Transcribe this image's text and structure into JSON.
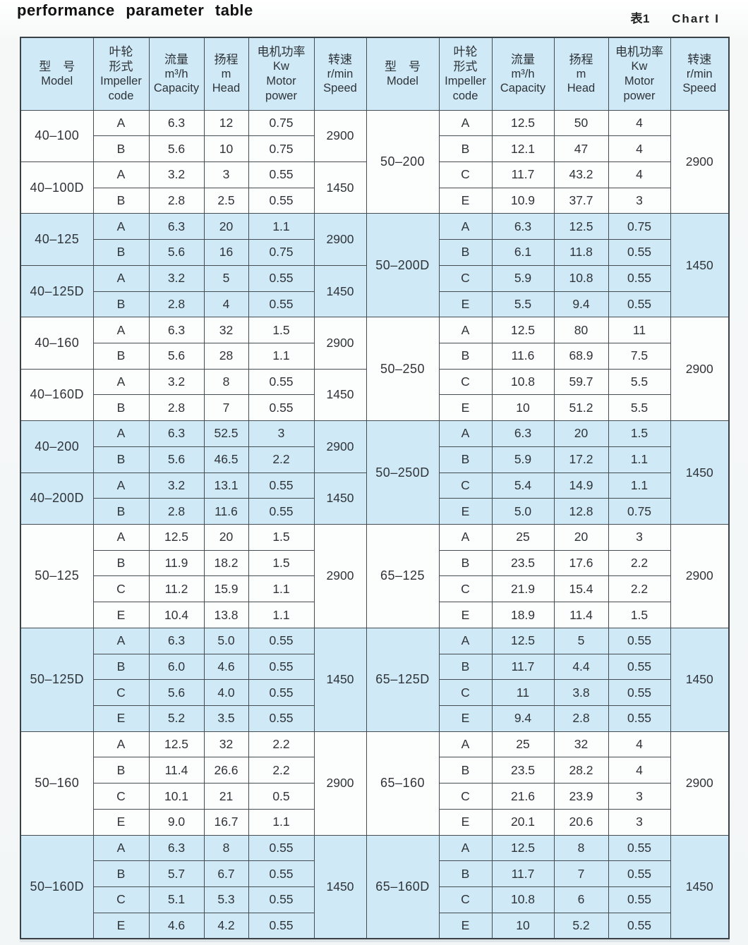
{
  "title": "performance parameter table",
  "caption": {
    "zh": "表1",
    "en": "Chart I"
  },
  "colors": {
    "band": "#cfe9f6",
    "header_bg": "#cfe9f6",
    "row_bg": "#fcfdfd",
    "border": "#454c52",
    "text": "#2f3439"
  },
  "table": {
    "columns": [
      {
        "id": "model",
        "lines": [
          "型　号",
          "Model"
        ]
      },
      {
        "id": "impeller",
        "lines": [
          "叶轮",
          "形式",
          "Impeller",
          "code"
        ]
      },
      {
        "id": "capacity",
        "lines": [
          "流量",
          "m³/h",
          "Capacity"
        ]
      },
      {
        "id": "head",
        "lines": [
          "扬程",
          "m",
          "Head"
        ]
      },
      {
        "id": "power",
        "lines": [
          "电机功率",
          "Kw",
          "Motor",
          "power"
        ]
      },
      {
        "id": "speed",
        "lines": [
          "转速",
          "r/min",
          "Speed"
        ]
      }
    ],
    "left_groups": [
      {
        "model": "40–100",
        "speed": "2900",
        "shaded": false,
        "rows": [
          [
            "A",
            "6.3",
            "12",
            "0.75"
          ],
          [
            "B",
            "5.6",
            "10",
            "0.75"
          ]
        ]
      },
      {
        "model": "40–100D",
        "speed": "1450",
        "shaded": false,
        "rows": [
          [
            "A",
            "3.2",
            "3",
            "0.55"
          ],
          [
            "B",
            "2.8",
            "2.5",
            "0.55"
          ]
        ]
      },
      {
        "model": "40–125",
        "speed": "2900",
        "shaded": true,
        "rows": [
          [
            "A",
            "6.3",
            "20",
            "1.1"
          ],
          [
            "B",
            "5.6",
            "16",
            "0.75"
          ]
        ]
      },
      {
        "model": "40–125D",
        "speed": "1450",
        "shaded": true,
        "rows": [
          [
            "A",
            "3.2",
            "5",
            "0.55"
          ],
          [
            "B",
            "2.8",
            "4",
            "0.55"
          ]
        ]
      },
      {
        "model": "40–160",
        "speed": "2900",
        "shaded": false,
        "rows": [
          [
            "A",
            "6.3",
            "32",
            "1.5"
          ],
          [
            "B",
            "5.6",
            "28",
            "1.1"
          ]
        ]
      },
      {
        "model": "40–160D",
        "speed": "1450",
        "shaded": false,
        "rows": [
          [
            "A",
            "3.2",
            "8",
            "0.55"
          ],
          [
            "B",
            "2.8",
            "7",
            "0.55"
          ]
        ]
      },
      {
        "model": "40–200",
        "speed": "2900",
        "shaded": true,
        "rows": [
          [
            "A",
            "6.3",
            "52.5",
            "3"
          ],
          [
            "B",
            "5.6",
            "46.5",
            "2.2"
          ]
        ]
      },
      {
        "model": "40–200D",
        "speed": "1450",
        "shaded": true,
        "rows": [
          [
            "A",
            "3.2",
            "13.1",
            "0.55"
          ],
          [
            "B",
            "2.8",
            "11.6",
            "0.55"
          ]
        ]
      },
      {
        "model": "50–125",
        "speed": "2900",
        "shaded": false,
        "rows": [
          [
            "A",
            "12.5",
            "20",
            "1.5"
          ],
          [
            "B",
            "11.9",
            "18.2",
            "1.5"
          ],
          [
            "C",
            "11.2",
            "15.9",
            "1.1"
          ],
          [
            "E",
            "10.4",
            "13.8",
            "1.1"
          ]
        ]
      },
      {
        "model": "50–125D",
        "speed": "1450",
        "shaded": true,
        "rows": [
          [
            "A",
            "6.3",
            "5.0",
            "0.55"
          ],
          [
            "B",
            "6.0",
            "4.6",
            "0.55"
          ],
          [
            "C",
            "5.6",
            "4.0",
            "0.55"
          ],
          [
            "E",
            "5.2",
            "3.5",
            "0.55"
          ]
        ]
      },
      {
        "model": "50–160",
        "speed": "2900",
        "shaded": false,
        "rows": [
          [
            "A",
            "12.5",
            "32",
            "2.2"
          ],
          [
            "B",
            "11.4",
            "26.6",
            "2.2"
          ],
          [
            "C",
            "10.1",
            "21",
            "0.5"
          ],
          [
            "E",
            "9.0",
            "16.7",
            "1.1"
          ]
        ]
      },
      {
        "model": "50–160D",
        "speed": "1450",
        "shaded": true,
        "rows": [
          [
            "A",
            "6.3",
            "8",
            "0.55"
          ],
          [
            "B",
            "5.7",
            "6.7",
            "0.55"
          ],
          [
            "C",
            "5.1",
            "5.3",
            "0.55"
          ],
          [
            "E",
            "4.6",
            "4.2",
            "0.55"
          ]
        ]
      }
    ],
    "right_groups": [
      {
        "model": "50–200",
        "speed": "2900",
        "shaded": false,
        "rows": [
          [
            "A",
            "12.5",
            "50",
            "4"
          ],
          [
            "B",
            "12.1",
            "47",
            "4"
          ],
          [
            "C",
            "11.7",
            "43.2",
            "4"
          ],
          [
            "E",
            "10.9",
            "37.7",
            "3"
          ]
        ]
      },
      {
        "model": "50–200D",
        "speed": "1450",
        "shaded": true,
        "rows": [
          [
            "A",
            "6.3",
            "12.5",
            "0.75"
          ],
          [
            "B",
            "6.1",
            "11.8",
            "0.55"
          ],
          [
            "C",
            "5.9",
            "10.8",
            "0.55"
          ],
          [
            "E",
            "5.5",
            "9.4",
            "0.55"
          ]
        ]
      },
      {
        "model": "50–250",
        "speed": "2900",
        "shaded": false,
        "rows": [
          [
            "A",
            "12.5",
            "80",
            "11"
          ],
          [
            "B",
            "11.6",
            "68.9",
            "7.5"
          ],
          [
            "C",
            "10.8",
            "59.7",
            "5.5"
          ],
          [
            "E",
            "10",
            "51.2",
            "5.5"
          ]
        ]
      },
      {
        "model": "50–250D",
        "speed": "1450",
        "shaded": true,
        "rows": [
          [
            "A",
            "6.3",
            "20",
            "1.5"
          ],
          [
            "B",
            "5.9",
            "17.2",
            "1.1"
          ],
          [
            "C",
            "5.4",
            "14.9",
            "1.1"
          ],
          [
            "E",
            "5.0",
            "12.8",
            "0.75"
          ]
        ]
      },
      {
        "model": "65–125",
        "speed": "2900",
        "shaded": false,
        "rows": [
          [
            "A",
            "25",
            "20",
            "3"
          ],
          [
            "B",
            "23.5",
            "17.6",
            "2.2"
          ],
          [
            "C",
            "21.9",
            "15.4",
            "2.2"
          ],
          [
            "E",
            "18.9",
            "11.4",
            "1.5"
          ]
        ]
      },
      {
        "model": "65–125D",
        "speed": "1450",
        "shaded": true,
        "rows": [
          [
            "A",
            "12.5",
            "5",
            "0.55"
          ],
          [
            "B",
            "11.7",
            "4.4",
            "0.55"
          ],
          [
            "C",
            "11",
            "3.8",
            "0.55"
          ],
          [
            "E",
            "9.4",
            "2.8",
            "0.55"
          ]
        ]
      },
      {
        "model": "65–160",
        "speed": "2900",
        "shaded": false,
        "rows": [
          [
            "A",
            "25",
            "32",
            "4"
          ],
          [
            "B",
            "23.5",
            "28.2",
            "4"
          ],
          [
            "C",
            "21.6",
            "23.9",
            "3"
          ],
          [
            "E",
            "20.1",
            "20.6",
            "3"
          ]
        ]
      },
      {
        "model": "65–160D",
        "speed": "1450",
        "shaded": true,
        "rows": [
          [
            "A",
            "12.5",
            "8",
            "0.55"
          ],
          [
            "B",
            "11.7",
            "7",
            "0.55"
          ],
          [
            "C",
            "10.8",
            "6",
            "0.55"
          ],
          [
            "E",
            "10",
            "5.2",
            "0.55"
          ]
        ]
      }
    ]
  }
}
